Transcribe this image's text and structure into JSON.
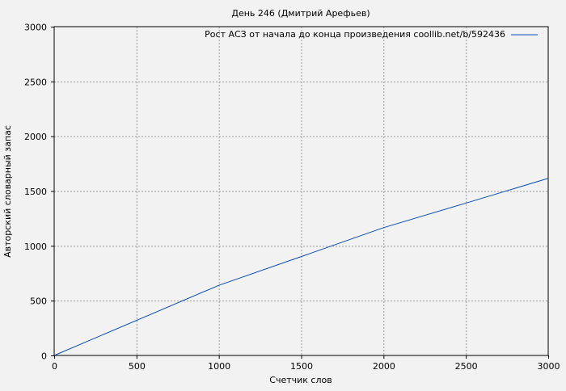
{
  "chart_data": {
    "type": "line",
    "title": "День 246 (Дмитрий Арефьев)",
    "xlabel": "Счетчик слов",
    "ylabel": "Авторский словарный запас",
    "xlim": [
      0,
      3000
    ],
    "ylim": [
      0,
      3000
    ],
    "xticks": [
      0,
      500,
      1000,
      1500,
      2000,
      2500,
      3000
    ],
    "yticks": [
      0,
      500,
      1000,
      1500,
      2000,
      2500,
      3000
    ],
    "grid": true,
    "legend_placement": "top-right",
    "series": [
      {
        "name": "Рост АСЗ от начала до конца произведения coollib.net/b/592436",
        "color": "#0a4cb4",
        "x": [
          0,
          1000,
          1500,
          2000,
          2500,
          3000
        ],
        "y": [
          0,
          640,
          902,
          1166,
          1390,
          1616
        ]
      }
    ]
  }
}
